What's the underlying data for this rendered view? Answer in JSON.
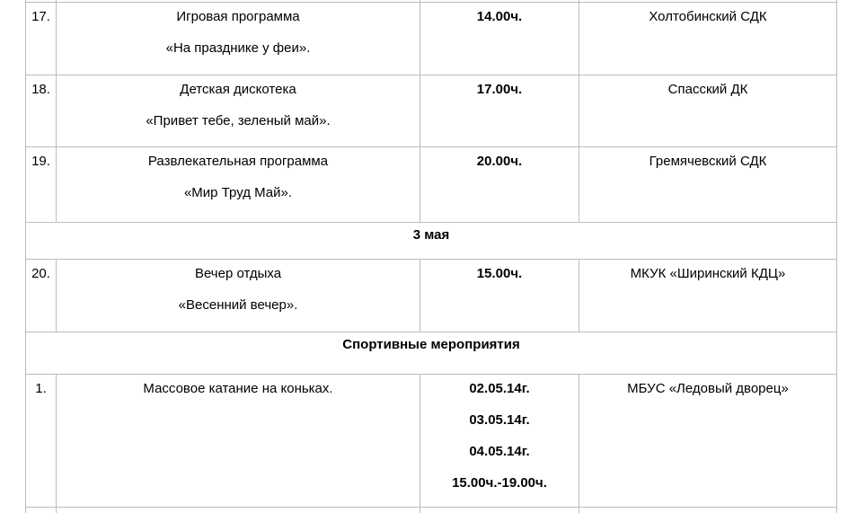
{
  "colors": {
    "background": "#ffffff",
    "text": "#000000",
    "table_border": "#bcbcbc"
  },
  "table": {
    "rows": [
      {
        "type": "event",
        "num": "17.",
        "event_lines": [
          "Игровая программа",
          "«На празднике у феи»."
        ],
        "time_lines": [
          "14.00ч."
        ],
        "location": "Холтобинский СДК"
      },
      {
        "type": "event",
        "num": "18.",
        "event_lines": [
          "Детская дискотека",
          "«Привет тебе, зеленый май»."
        ],
        "time_lines": [
          "17.00ч."
        ],
        "location": "Спасский ДК"
      },
      {
        "type": "event",
        "num": "19.",
        "event_lines": [
          "Развлекательная программа",
          "«Мир Труд Май»."
        ],
        "time_lines": [
          "20.00ч."
        ],
        "location": "Гремячевский СДК"
      },
      {
        "type": "section",
        "label": "3 мая"
      },
      {
        "type": "event",
        "num": "20.",
        "event_lines": [
          "Вечер отдыха",
          "«Весенний вечер»."
        ],
        "time_lines": [
          "15.00ч."
        ],
        "location": "МКУК «Ширинский КДЦ»"
      },
      {
        "type": "section",
        "label": "Спортивные мероприятия"
      },
      {
        "type": "event",
        "num": "1.",
        "event_lines": [
          "Массовое катание на коньках."
        ],
        "time_lines": [
          "02.05.14г.",
          "03.05.14г.",
          "04.05.14г.",
          "15.00ч.-19.00ч."
        ],
        "location": "МБУС «Ледовый дворец»"
      }
    ]
  }
}
